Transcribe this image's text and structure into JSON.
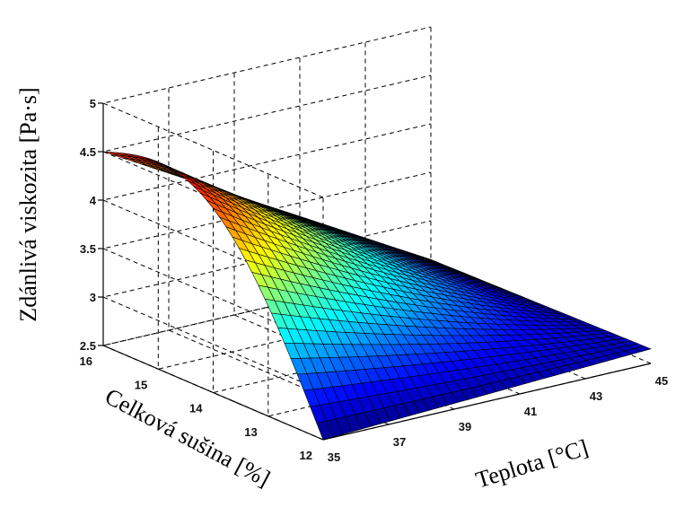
{
  "chart_data": {
    "type": "surface",
    "xlabel": "Teplota [°C]",
    "ylabel": "Celková sušina [%]",
    "zlabel": "Zdánlivá viskozita [Pa·s]",
    "x_ticks": [
      "35",
      "37",
      "39",
      "41",
      "43",
      "45"
    ],
    "y_ticks": [
      "12",
      "13",
      "14",
      "15",
      "16"
    ],
    "z_ticks": [
      "2.5",
      "3",
      "3.5",
      "4",
      "4.5",
      "5"
    ],
    "xlim": [
      35,
      45
    ],
    "ylim": [
      12,
      16
    ],
    "zlim": [
      2.5,
      5
    ],
    "grid": true,
    "colormap": "jet",
    "corner_values": [
      {
        "temperature": 35,
        "dry_matter": 16,
        "viscosity": 4.5
      },
      {
        "temperature": 45,
        "dry_matter": 16,
        "viscosity": 2.6
      },
      {
        "temperature": 35,
        "dry_matter": 12,
        "viscosity": 2.5
      },
      {
        "temperature": 45,
        "dry_matter": 12,
        "viscosity": 2.65
      }
    ]
  }
}
